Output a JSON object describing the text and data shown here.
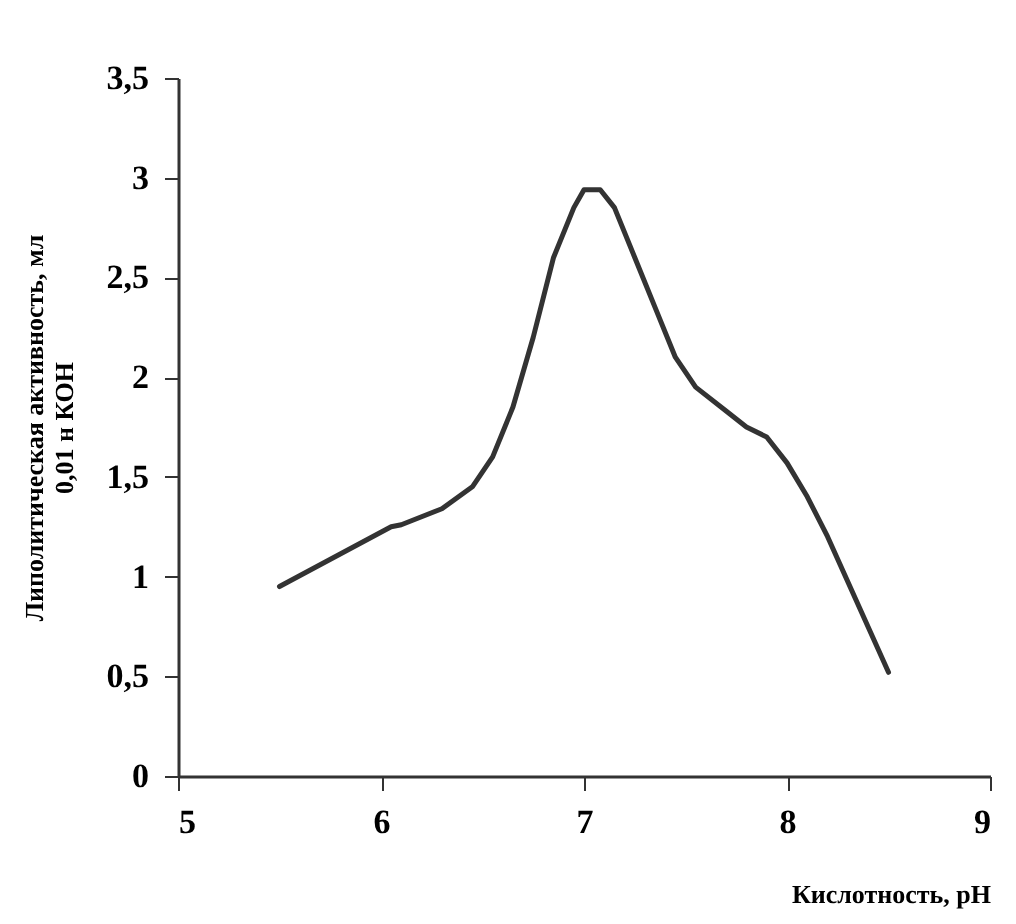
{
  "chart_data": {
    "type": "line",
    "xlabel": "Кислотность, pH",
    "ylabel": [
      "Липолитическая активность, мл",
      "0,01 н КОН"
    ],
    "x": [
      5.5,
      6.05,
      6.1,
      6.3,
      6.45,
      6.55,
      6.65,
      6.75,
      6.85,
      6.95,
      7.0,
      7.08,
      7.15,
      7.25,
      7.35,
      7.45,
      7.55,
      7.7,
      7.8,
      7.9,
      8.0,
      8.1,
      8.2,
      8.5
    ],
    "series": [
      {
        "color": "#333333",
        "values": [
          0.95,
          1.25,
          1.26,
          1.34,
          1.45,
          1.6,
          1.85,
          2.2,
          2.6,
          2.85,
          2.94,
          2.94,
          2.85,
          2.6,
          2.35,
          2.1,
          1.95,
          1.83,
          1.75,
          1.7,
          1.57,
          1.4,
          1.2,
          0.52
        ]
      }
    ],
    "xlim": [
      5,
      9
    ],
    "xticks": [
      5,
      6,
      7,
      8,
      9
    ],
    "ylim": [
      0,
      3.5
    ],
    "yticks": [
      {
        "value": 0,
        "label": "0"
      },
      {
        "value": 0.5,
        "label": "0,5"
      },
      {
        "value": 1,
        "label": "1"
      },
      {
        "value": 1.5,
        "label": "1,5"
      },
      {
        "value": 2,
        "label": "2"
      },
      {
        "value": 2.5,
        "label": "2,5"
      },
      {
        "value": 3,
        "label": "3"
      },
      {
        "value": 3.5,
        "label": "3,5"
      }
    ],
    "grid": false,
    "marker": "none",
    "line_style": "solid"
  }
}
